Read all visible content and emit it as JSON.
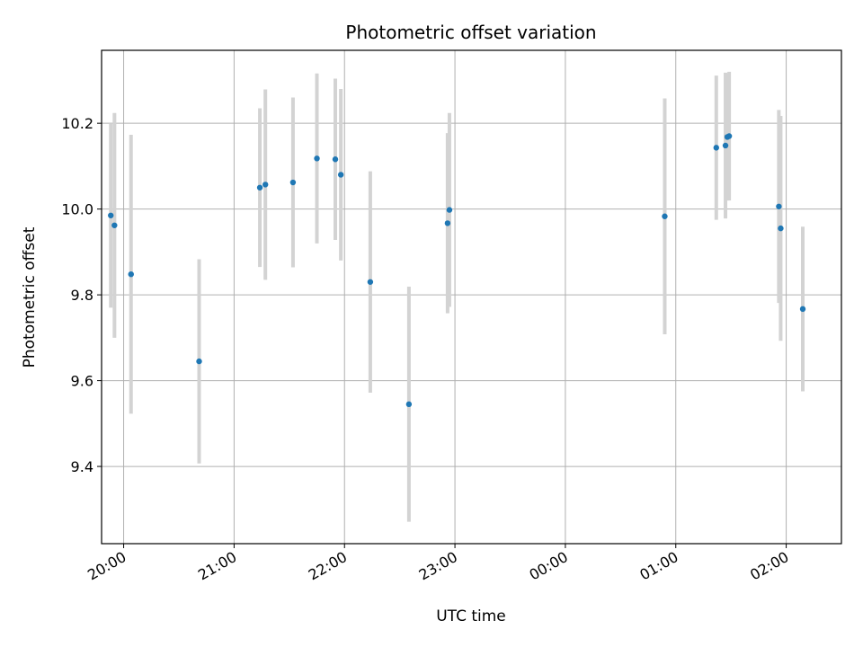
{
  "chart_data": {
    "type": "scatter",
    "title": "Photometric offset variation",
    "xlabel": "UTC time",
    "ylabel": "Photometric offset",
    "xlim": [
      "19:48",
      "02:30"
    ],
    "ylim": [
      9.22,
      10.37
    ],
    "x_ticks": [
      "20:00",
      "21:00",
      "22:00",
      "23:00",
      "00:00",
      "01:00",
      "02:00"
    ],
    "y_ticks": [
      "9.4",
      "9.6",
      "9.8",
      "10.0",
      "10.2"
    ],
    "grid": true,
    "marker_color": "#1f77b4",
    "errorbar_color": "#d3d3d3",
    "points": [
      {
        "t": "19:53",
        "y": 9.985,
        "err": 0.215
      },
      {
        "t": "19:55",
        "y": 9.962,
        "err": 0.262
      },
      {
        "t": "20:04",
        "y": 9.848,
        "err": 0.325
      },
      {
        "t": "20:41",
        "y": 9.645,
        "err": 0.238
      },
      {
        "t": "21:14",
        "y": 10.05,
        "err": 0.185
      },
      {
        "t": "21:17",
        "y": 10.057,
        "err": 0.222
      },
      {
        "t": "21:32",
        "y": 10.062,
        "err": 0.198
      },
      {
        "t": "21:45",
        "y": 10.118,
        "err": 0.198
      },
      {
        "t": "21:55",
        "y": 10.116,
        "err": 0.188
      },
      {
        "t": "21:58",
        "y": 10.08,
        "err": 0.2
      },
      {
        "t": "22:14",
        "y": 9.83,
        "err": 0.258
      },
      {
        "t": "22:35",
        "y": 9.545,
        "err": 0.274
      },
      {
        "t": "22:56",
        "y": 9.967,
        "err": 0.21
      },
      {
        "t": "22:57",
        "y": 9.998,
        "err": 0.226
      },
      {
        "t": "00:54",
        "y": 9.983,
        "err": 0.275
      },
      {
        "t": "01:22",
        "y": 10.143,
        "err": 0.168
      },
      {
        "t": "01:27",
        "y": 10.148,
        "err": 0.17
      },
      {
        "t": "01:28",
        "y": 10.168,
        "err": 0.148
      },
      {
        "t": "01:29",
        "y": 10.17,
        "err": 0.15
      },
      {
        "t": "01:56",
        "y": 10.006,
        "err": 0.225
      },
      {
        "t": "01:57",
        "y": 9.955,
        "err": 0.262
      },
      {
        "t": "02:09",
        "y": 9.767,
        "err": 0.192
      }
    ]
  }
}
